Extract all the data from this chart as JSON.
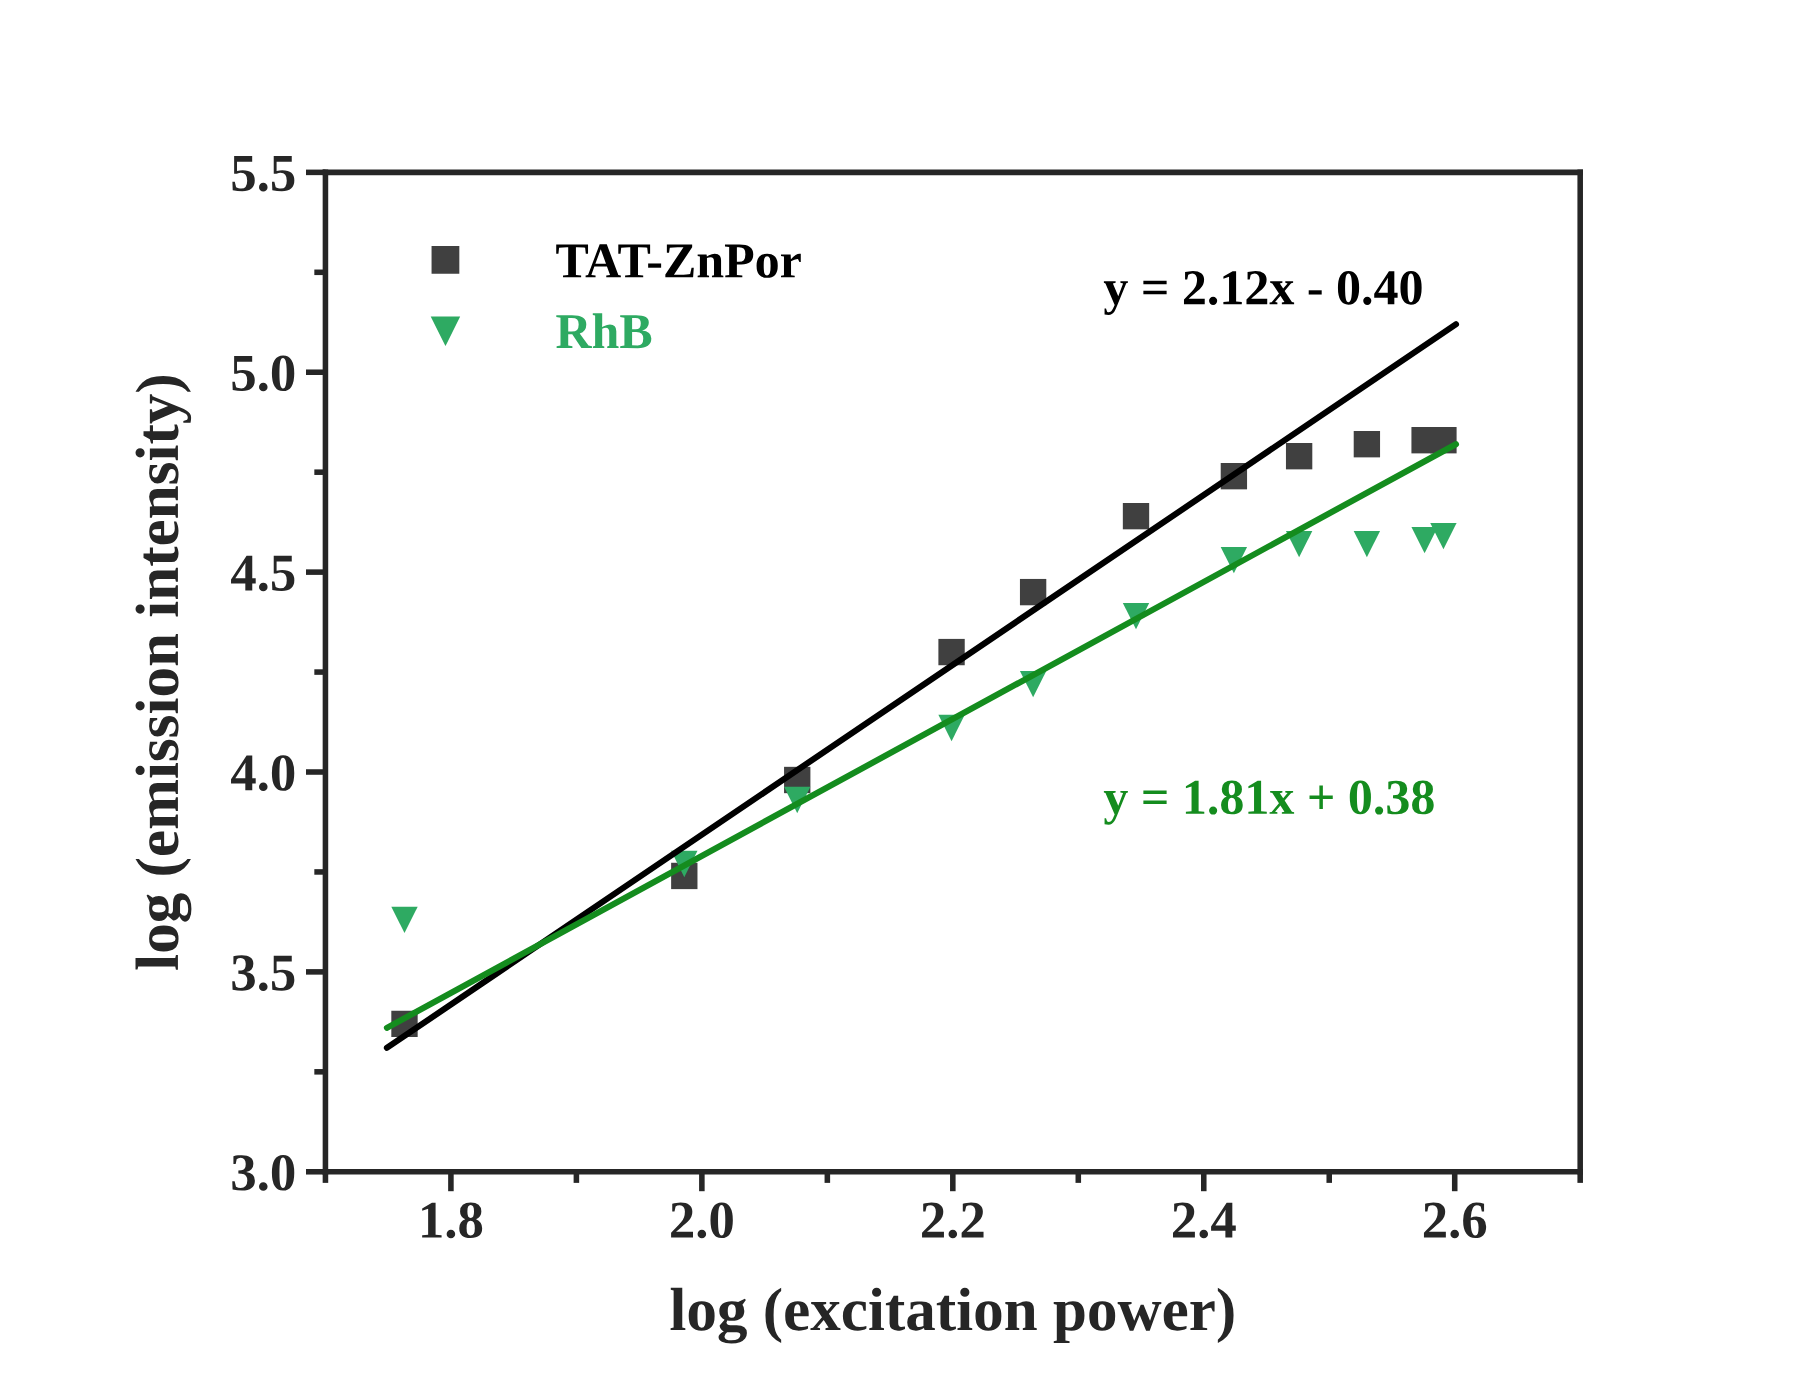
{
  "chart_data": {
    "type": "scatter",
    "xlabel": "log (excitation power)",
    "ylabel": "log (emission intensity)",
    "xlim": [
      1.7,
      2.7
    ],
    "xticks": [
      1.8,
      {
        "value": 2.0,
        "label": "2.0"
      },
      2.2,
      2.4,
      2.6
    ],
    "ylim": [
      3.0,
      5.5
    ],
    "yticks": [
      {
        "value": 3.0,
        "label": "3.0"
      },
      3.5,
      {
        "value": 4.0,
        "label": "4.0"
      },
      4.5,
      {
        "value": 5.0,
        "label": "5.0"
      },
      5.5
    ],
    "grid": false,
    "legend": "top left",
    "series": [
      {
        "name": "TAT-ZnPor",
        "marker": "square",
        "color": "#404040",
        "x": [
          1.763,
          1.986,
          2.076,
          2.199,
          2.264,
          2.346,
          2.424,
          2.476,
          2.53,
          2.576,
          2.591
        ],
        "values": [
          3.37,
          3.74,
          3.98,
          4.3,
          4.45,
          4.64,
          4.74,
          4.79,
          4.82,
          4.83,
          4.83
        ]
      },
      {
        "name": "RhB",
        "marker": "triangle",
        "color": "#2eaa62",
        "x": [
          1.763,
          1.986,
          2.076,
          2.199,
          2.264,
          2.346,
          2.424,
          2.476,
          2.53,
          2.576,
          2.591
        ],
        "values": [
          3.63,
          3.77,
          3.93,
          4.11,
          4.22,
          4.39,
          4.53,
          4.57,
          4.57,
          4.58,
          4.59
        ]
      },
      {
        "type": "line",
        "color": "#000000",
        "x": [
          1.749,
          2.601
        ],
        "values": [
          3.31,
          5.12
        ]
      },
      {
        "type": "line",
        "color": "#148c1e",
        "x": [
          1.749,
          2.601
        ],
        "values": [
          3.36,
          4.82
        ]
      }
    ],
    "annotations": [
      "y = 2.12x - 0.40",
      "y = 1.81x + 0.38"
    ]
  }
}
